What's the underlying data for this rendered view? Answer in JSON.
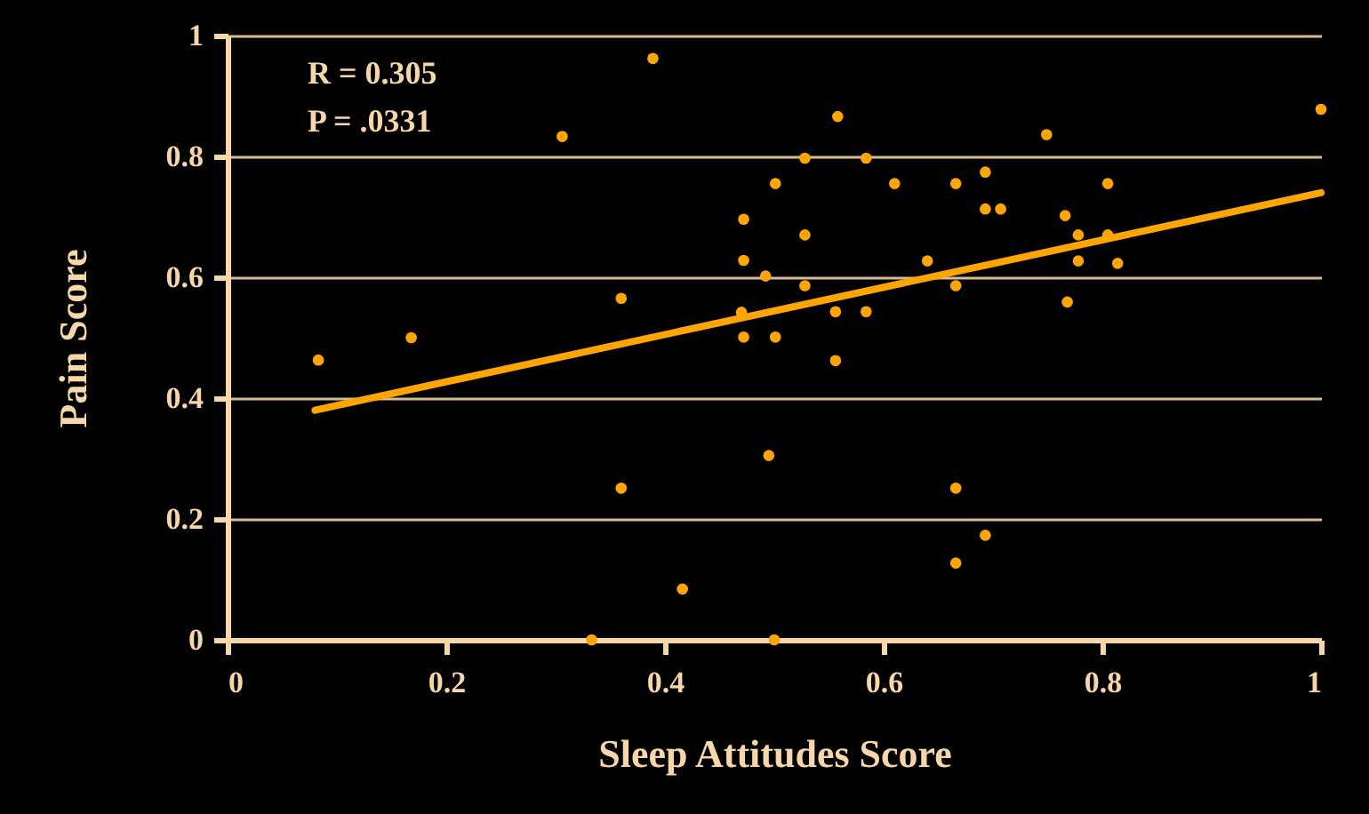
{
  "chart_data": {
    "type": "scatter",
    "xlabel": "Sleep Attitudes Score",
    "ylabel": "Pain Score",
    "annotations": [
      "R = 0.305",
      "P = .0331"
    ],
    "xlim": [
      0,
      1
    ],
    "xticks": [
      0,
      0.2,
      0.4,
      0.6,
      0.8,
      1
    ],
    "ylim": [
      0,
      1
    ],
    "yticks": [
      0,
      0.2,
      0.4,
      0.6,
      0.8,
      1
    ],
    "grid": "y",
    "marker": "circle",
    "series": [
      {
        "color": "#ffa500",
        "x": [
          0.083,
          0.168,
          0.306,
          0.389,
          0.36,
          0.36,
          0.416,
          0.333,
          0.5,
          0.495,
          0.472,
          0.472,
          0.47,
          0.472,
          0.492,
          0.501,
          0.501,
          0.528,
          0.528,
          0.528,
          0.558,
          0.556,
          0.556,
          0.584,
          0.584,
          0.61,
          0.64,
          0.666,
          0.666,
          0.666,
          0.693,
          0.666,
          0.693,
          0.693,
          0.707,
          0.749,
          0.766,
          0.768,
          0.778,
          0.778,
          0.805,
          0.805,
          0.814,
          1.0
        ],
        "values": [
          0.463,
          0.5,
          0.833,
          0.962,
          0.565,
          0.251,
          0.084,
          0,
          0,
          0.305,
          0.696,
          0.628,
          0.542,
          0.501,
          0.602,
          0.755,
          0.501,
          0.797,
          0.67,
          0.586,
          0.866,
          0.543,
          0.462,
          0.797,
          0.543,
          0.755,
          0.627,
          0.755,
          0.586,
          0.251,
          0.173,
          0.127,
          0.774,
          0.713,
          0.713,
          0.836,
          0.702,
          0.559,
          0.67,
          0.627,
          0.755,
          0.67,
          0.623,
          0.878
        ]
      },
      {
        "type": "line",
        "marker": "none",
        "color": "#ffa500",
        "x": [
          0.08,
          1
        ],
        "values": [
          0.38,
          0.74
        ]
      }
    ]
  }
}
